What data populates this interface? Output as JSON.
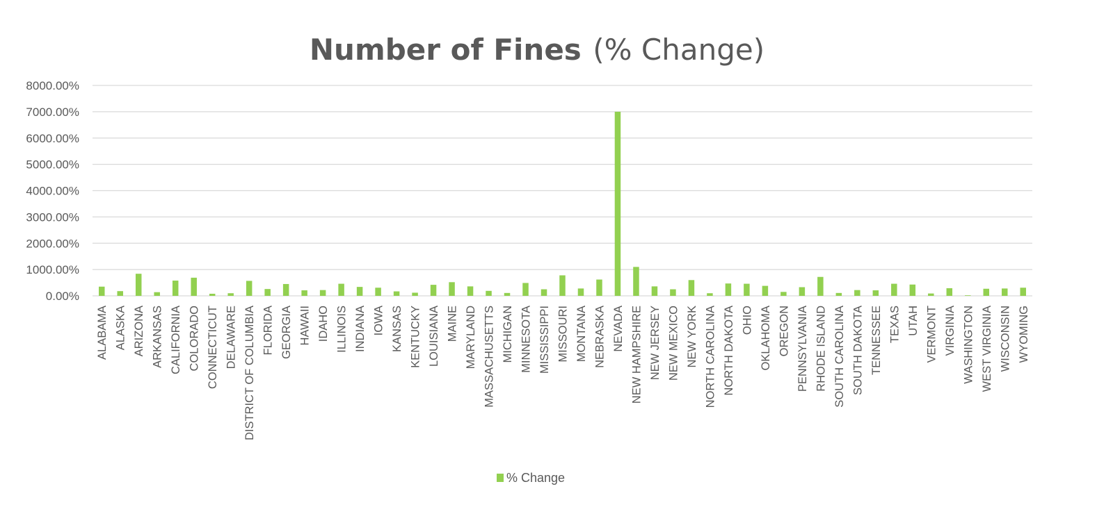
{
  "chart_data": {
    "type": "bar",
    "title": "Number of Fines",
    "subtitle": "(% Change)",
    "xlabel": "",
    "ylabel": "",
    "ylim": [
      0,
      8000
    ],
    "yticks": [
      0,
      1000,
      2000,
      3000,
      4000,
      5000,
      6000,
      7000,
      8000
    ],
    "ytick_labels": [
      "0.00%",
      "1000.00%",
      "2000.00%",
      "3000.00%",
      "4000.00%",
      "5000.00%",
      "6000.00%",
      "7000.00%",
      "8000.00%"
    ],
    "grid": true,
    "legend_position": "bottom",
    "bar_color": "#92d050",
    "categories": [
      "ALABAMA",
      "ALASKA",
      "ARIZONA",
      "ARKANSAS",
      "CALIFORNIA",
      "COLORADO",
      "CONNECTICUT",
      "DELAWARE",
      "DISTRICT OF COLUMBIA",
      "FLORIDA",
      "GEORGIA",
      "HAWAII",
      "IDAHO",
      "ILLINOIS",
      "INDIANA",
      "IOWA",
      "KANSAS",
      "KENTUCKY",
      "LOUISIANA",
      "MAINE",
      "MARYLAND",
      "MASSACHUSETTS",
      "MICHIGAN",
      "MINNESOTA",
      "MISSISSIPPI",
      "MISSOURI",
      "MONTANA",
      "NEBRASKA",
      "NEVADA",
      "NEW HAMPSHIRE",
      "NEW JERSEY",
      "NEW MEXICO",
      "NEW YORK",
      "NORTH CAROLINA",
      "NORTH DAKOTA",
      "OHIO",
      "OKLAHOMA",
      "OREGON",
      "PENNSYLVANIA",
      "RHODE ISLAND",
      "SOUTH CAROLINA",
      "SOUTH DAKOTA",
      "TENNESSEE",
      "TEXAS",
      "UTAH",
      "VERMONT",
      "VIRGINIA",
      "WASHINGTON",
      "WEST VIRGINIA",
      "WISCONSIN",
      "WYOMING"
    ],
    "series": [
      {
        "name": "% Change",
        "values": [
          350,
          180,
          840,
          140,
          580,
          690,
          80,
          100,
          570,
          260,
          450,
          210,
          220,
          460,
          340,
          310,
          170,
          120,
          420,
          520,
          360,
          190,
          110,
          490,
          250,
          780,
          280,
          620,
          7000,
          1100,
          360,
          250,
          600,
          100,
          470,
          460,
          380,
          150,
          330,
          720,
          110,
          220,
          210,
          460,
          430,
          90,
          290,
          20,
          270,
          280,
          310
        ]
      }
    ]
  }
}
